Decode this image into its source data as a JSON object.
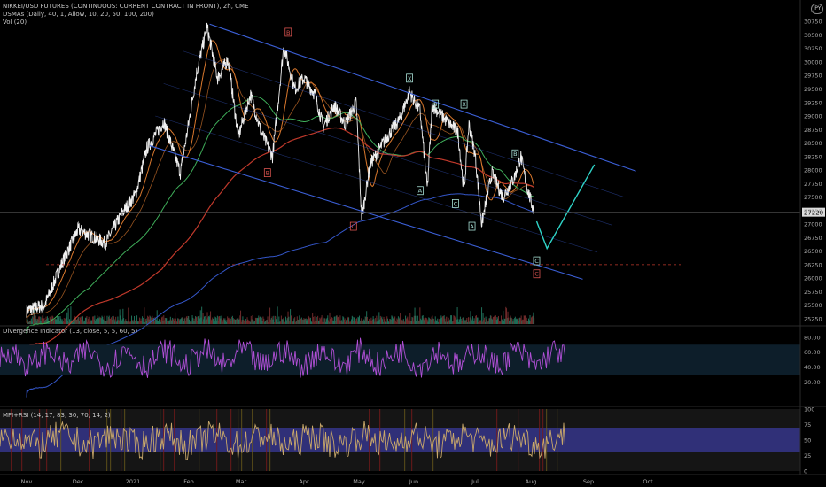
{
  "header": {
    "symbol_line": "NIKKEI/USD FUTURES (CONTINUOUS: CURRENT CONTRACT IN FRONT), 2h, CME",
    "dsma_line": "DSMAs (Daily, 40, 1, Allow, 10, 20, 50, 100, 200)",
    "vol_line": "Vol (20)",
    "currency_badge": "JPY"
  },
  "indicators": {
    "divergence_label": "Divergence Indicator (13, close, 5, 5, 60, 5)",
    "mfi_label": "MFI+RSI (14, 17, 83, 30, 70, 14, 2)"
  },
  "colors": {
    "background": "#000000",
    "price": "#f0f0f0",
    "channel": "#3b5fd6",
    "dsma_orange": "#d9782d",
    "dsma_green": "#3fae5a",
    "dsma_red": "#c0392b",
    "dsma_blue": "#3456c9",
    "projection": "#2fd3c7",
    "wave_label": "#a8e0d6",
    "divergence_line": "#b04fd6",
    "mfi_band": "#3a3a9a",
    "mfi_line": "#c9a86a"
  },
  "chart_data": [
    {
      "type": "line",
      "panel": "price",
      "title": "NIKKEI/USD FUTURES (CONTINUOUS: CURRENT CONTRACT IN FRONT), 2h, CME",
      "x_axis_labels": [
        "Nov",
        "Dec",
        "2021",
        "Feb",
        "Mar",
        "Apr",
        "May",
        "Jun",
        "Jul",
        "Aug",
        "Sep",
        "Oct"
      ],
      "y_ticks": [
        25250,
        25500,
        25750,
        26000,
        26250,
        26500,
        26750,
        27000,
        27250,
        27500,
        27750,
        28000,
        28250,
        28500,
        28750,
        29000,
        29250,
        29500,
        29750,
        30000,
        30250,
        30500,
        30750
      ],
      "ylim": [
        25150,
        30950
      ],
      "last_price_label": "27220",
      "price_anchors": [
        {
          "t": 0.0,
          "v": 25400
        },
        {
          "t": 0.35,
          "v": 25500
        },
        {
          "t": 0.7,
          "v": 26300
        },
        {
          "t": 1.0,
          "v": 26900
        },
        {
          "t": 1.5,
          "v": 26650
        },
        {
          "t": 1.8,
          "v": 27200
        },
        {
          "t": 2.05,
          "v": 27550
        },
        {
          "t": 2.25,
          "v": 28400
        },
        {
          "t": 2.55,
          "v": 28900
        },
        {
          "t": 2.85,
          "v": 27950
        },
        {
          "t": 3.15,
          "v": 29800
        },
        {
          "t": 3.35,
          "v": 30650
        },
        {
          "t": 3.55,
          "v": 29700
        },
        {
          "t": 3.75,
          "v": 30050
        },
        {
          "t": 3.95,
          "v": 28600
        },
        {
          "t": 4.15,
          "v": 29400
        },
        {
          "t": 4.32,
          "v": 28700
        },
        {
          "t": 4.5,
          "v": 28250
        },
        {
          "t": 4.68,
          "v": 30300
        },
        {
          "t": 4.85,
          "v": 29500
        },
        {
          "t": 5.0,
          "v": 29700
        },
        {
          "t": 5.2,
          "v": 29400
        },
        {
          "t": 5.35,
          "v": 28800
        },
        {
          "t": 5.55,
          "v": 29200
        },
        {
          "t": 5.75,
          "v": 28850
        },
        {
          "t": 5.95,
          "v": 29250
        },
        {
          "t": 6.05,
          "v": 27100
        },
        {
          "t": 6.2,
          "v": 28100
        },
        {
          "t": 6.5,
          "v": 28600
        },
        {
          "t": 6.75,
          "v": 28950
        },
        {
          "t": 6.92,
          "v": 29450
        },
        {
          "t": 7.1,
          "v": 29100
        },
        {
          "t": 7.22,
          "v": 27650
        },
        {
          "t": 7.3,
          "v": 29200
        },
        {
          "t": 7.5,
          "v": 28950
        },
        {
          "t": 7.72,
          "v": 28700
        },
        {
          "t": 7.82,
          "v": 27600
        },
        {
          "t": 7.9,
          "v": 28850
        },
        {
          "t": 8.0,
          "v": 28300
        },
        {
          "t": 8.12,
          "v": 27000
        },
        {
          "t": 8.3,
          "v": 27950
        },
        {
          "t": 8.5,
          "v": 27500
        },
        {
          "t": 8.7,
          "v": 27850
        },
        {
          "t": 8.82,
          "v": 28250
        },
        {
          "t": 8.95,
          "v": 27600
        },
        {
          "t": 9.06,
          "v": 27220
        }
      ],
      "projection": [
        {
          "t": 9.1,
          "v": 27050
        },
        {
          "t": 9.28,
          "v": 26550
        },
        {
          "t": 10.1,
          "v": 28100
        }
      ],
      "support_level": 26250,
      "channel_lines": [
        {
          "from": {
            "t": 3.4,
            "v": 30700
          },
          "to": {
            "t": 10.8,
            "v": 27980
          }
        },
        {
          "from": {
            "t": 2.9,
            "v": 30200
          },
          "to": {
            "t": 10.6,
            "v": 27500
          }
        },
        {
          "from": {
            "t": 2.55,
            "v": 29600
          },
          "to": {
            "t": 10.4,
            "v": 26980
          }
        },
        {
          "from": {
            "t": 2.4,
            "v": 29000
          },
          "to": {
            "t": 10.15,
            "v": 26480
          }
        },
        {
          "from": {
            "t": 2.3,
            "v": 28450
          },
          "to": {
            "t": 9.9,
            "v": 25980
          }
        }
      ],
      "wave_labels": [
        {
          "text": "B",
          "t": 4.75,
          "v": 30550,
          "style": "red"
        },
        {
          "text": "X",
          "t": 6.92,
          "v": 29700,
          "style": "teal"
        },
        {
          "text": "B",
          "t": 7.35,
          "v": 29220,
          "style": "teal"
        },
        {
          "text": "X",
          "t": 7.82,
          "v": 29220,
          "style": "teal"
        },
        {
          "text": "B",
          "t": 8.72,
          "v": 28300,
          "style": "teal"
        },
        {
          "text": "B",
          "t": 4.42,
          "v": 27950,
          "style": "red"
        },
        {
          "text": "A",
          "t": 7.1,
          "v": 27620,
          "style": "teal"
        },
        {
          "text": "C",
          "t": 7.68,
          "v": 27380,
          "style": "teal"
        },
        {
          "text": "C",
          "t": 5.9,
          "v": 26960,
          "style": "red"
        },
        {
          "text": "A",
          "t": 7.95,
          "v": 26960,
          "style": "teal"
        },
        {
          "text": "C",
          "t": 9.1,
          "v": 26320,
          "style": "teal"
        },
        {
          "text": "C",
          "t": 9.1,
          "v": 26080,
          "style": "red"
        }
      ]
    },
    {
      "type": "line",
      "panel": "divergence",
      "title": "Divergence Indicator (13, close, 5, 5, 60, 5)",
      "y_ticks": [
        "80.00",
        "60.00",
        "40.00",
        "20.00"
      ],
      "ylim": [
        10,
        88
      ],
      "band": [
        30,
        70
      ]
    },
    {
      "type": "line",
      "panel": "mfi",
      "title": "MFI+RSI (14, 17, 83, 30, 70, 14, 2)",
      "y_ticks": [
        "100",
        "75",
        "50",
        "25",
        "0"
      ],
      "ylim": [
        0,
        100
      ],
      "band": [
        30,
        70
      ]
    }
  ]
}
